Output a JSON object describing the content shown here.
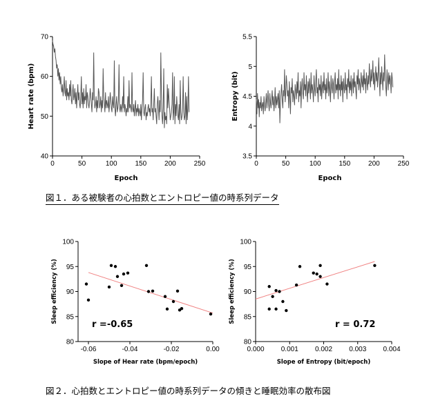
{
  "captions": {
    "fig1": "図１．ある被験者の心拍数とエントロピー値の時系列データ",
    "fig2": "図２．心拍数とエントロピー値の時系列データの傾きと睡眠効率の散布図"
  },
  "colors": {
    "line": "#555555",
    "fit": "#f08080",
    "point": "#000000",
    "axis": "#000000"
  },
  "chart_data": [
    {
      "type": "line",
      "xlabel": "Epoch",
      "ylabel": "Heart rate (bpm)",
      "xlim": [
        0,
        250
      ],
      "ylim": [
        40,
        70
      ],
      "xticks": [
        0,
        50,
        100,
        150,
        200,
        250
      ],
      "yticks": [
        40,
        50,
        60,
        70
      ],
      "x_start": 0,
      "x_step": 1,
      "values": [
        69,
        68,
        67.5,
        66,
        67,
        65,
        64,
        62,
        63,
        60,
        62,
        59,
        61,
        58,
        60,
        57,
        56,
        58,
        55,
        57,
        60,
        56,
        55,
        59,
        54,
        57,
        55,
        56,
        54,
        58,
        55,
        59,
        54,
        53,
        56,
        58,
        54,
        55,
        57,
        53,
        56,
        52,
        55,
        58,
        54,
        56,
        53,
        52,
        55,
        60,
        53,
        56,
        52,
        57,
        53,
        55,
        54,
        58,
        52,
        56,
        55,
        53,
        52,
        54,
        57,
        55,
        53,
        51,
        56,
        54,
        66,
        54,
        52,
        53,
        55,
        51,
        54,
        52,
        57,
        56,
        52,
        53,
        55,
        51,
        54,
        52,
        62,
        55,
        53,
        51,
        56,
        52,
        54,
        53,
        52,
        55,
        51,
        53,
        56,
        54,
        52,
        51,
        55,
        53,
        52,
        64,
        52,
        50,
        53,
        55,
        51,
        52,
        54,
        63,
        52,
        51,
        53,
        52,
        51,
        55,
        52,
        60,
        51,
        53,
        52,
        50,
        52,
        51,
        55,
        51,
        59,
        52,
        53,
        52,
        51,
        61,
        52,
        51,
        53,
        50,
        52,
        54,
        50,
        52,
        51,
        53,
        50,
        52,
        51,
        50,
        53,
        49,
        52,
        54,
        61,
        51,
        50,
        52,
        53,
        49,
        51,
        50,
        52,
        53,
        51,
        52,
        50,
        53,
        60,
        51,
        52,
        49,
        53,
        57,
        51,
        52,
        50,
        48,
        53,
        55,
        52,
        49,
        54,
        51,
        66,
        56,
        50,
        48,
        52,
        62,
        47,
        51,
        49,
        50,
        48,
        58,
        52,
        57,
        54,
        52,
        49,
        50,
        51,
        53,
        61,
        49,
        51,
        60,
        48,
        53,
        50,
        55,
        52,
        50,
        49,
        53,
        48,
        59,
        51,
        49,
        50,
        52,
        60,
        51,
        49,
        50,
        56,
        48,
        55,
        49,
        52,
        60,
        51
      ]
    },
    {
      "type": "line",
      "xlabel": "Epoch",
      "ylabel": "Entropy (bit)",
      "xlim": [
        0,
        250
      ],
      "ylim": [
        3.5,
        5.5
      ],
      "xticks": [
        0,
        50,
        100,
        150,
        200,
        250
      ],
      "yticks": [
        3.5,
        4.0,
        4.5,
        5.0,
        5.5
      ],
      "x_start": 0,
      "x_step": 1,
      "values": [
        4.45,
        4.2,
        4.55,
        4.3,
        4.45,
        4.15,
        4.4,
        4.3,
        4.5,
        4.25,
        4.35,
        4.4,
        4.2,
        4.5,
        4.35,
        4.25,
        4.4,
        4.55,
        4.3,
        4.45,
        4.6,
        4.35,
        4.25,
        4.55,
        4.4,
        4.3,
        4.45,
        4.6,
        4.35,
        4.5,
        4.25,
        4.4,
        4.65,
        4.3,
        4.5,
        4.35,
        4.45,
        4.55,
        4.3,
        4.6,
        4.05,
        4.4,
        4.55,
        4.7,
        4.45,
        4.3,
        4.6,
        4.5,
        4.95,
        4.4,
        4.55,
        4.85,
        4.7,
        4.5,
        4.6,
        4.3,
        4.75,
        4.5,
        4.2,
        4.65,
        4.55,
        4.8,
        4.4,
        4.6,
        4.5,
        4.35,
        4.7,
        4.6,
        4.45,
        4.75,
        4.55,
        4.9,
        4.4,
        4.6,
        4.5,
        4.75,
        4.3,
        4.65,
        4.8,
        4.55,
        4.45,
        4.9,
        4.6,
        4.7,
        4.5,
        4.85,
        4.6,
        4.4,
        4.75,
        4.55,
        4.8,
        4.65,
        4.45,
        4.9,
        4.55,
        4.7,
        4.6,
        4.4,
        4.85,
        4.65,
        4.5,
        4.75,
        4.95,
        4.55,
        4.65,
        4.4,
        4.8,
        4.6,
        4.7,
        4.5,
        4.85,
        4.45,
        4.65,
        4.75,
        4.55,
        4.9,
        4.6,
        4.7,
        4.45,
        4.8,
        4.55,
        4.65,
        4.9,
        4.5,
        4.75,
        4.6,
        4.4,
        4.85,
        4.65,
        4.55,
        4.8,
        4.7,
        4.45,
        4.75,
        4.9,
        4.55,
        4.7,
        4.6,
        4.8,
        4.45,
        4.95,
        4.6,
        4.7,
        4.5,
        4.85,
        4.6,
        4.75,
        4.4,
        4.8,
        4.65,
        4.55,
        4.9,
        4.6,
        4.7,
        4.45,
        4.8,
        4.65,
        4.95,
        4.55,
        4.75,
        4.6,
        4.85,
        4.5,
        4.7,
        4.8,
        4.55,
        4.9,
        4.65,
        4.75,
        4.6,
        4.45,
        4.85,
        4.7,
        4.95,
        4.6,
        4.8,
        4.7,
        4.55,
        4.9,
        4.75,
        4.65,
        4.85,
        4.6,
        4.95,
        4.7,
        4.8,
        4.55,
        4.9,
        4.75,
        4.6,
        4.85,
        4.7,
        5.05,
        4.8,
        4.65,
        4.95,
        4.75,
        4.85,
        5.1,
        4.7,
        4.9,
        4.6,
        4.8,
        5.0,
        4.75,
        4.9,
        4.65,
        4.85,
        5.15,
        4.8,
        4.5,
        4.9,
        4.7,
        5.0,
        4.8,
        4.6,
        4.9,
        4.75,
        5.2,
        4.85,
        4.65,
        4.5,
        4.95,
        4.8,
        4.6,
        4.9,
        4.7,
        4.85,
        4.75,
        4.55,
        4.9,
        4.8,
        4.65
      ]
    },
    {
      "type": "scatter",
      "xlabel": "Slope of Hear rate (bpm/epoch)",
      "ylabel": "Sleep efficiency (%)",
      "xlim": [
        -0.065,
        0.0
      ],
      "ylim": [
        80,
        100
      ],
      "xticks": [
        -0.06,
        -0.04,
        -0.02,
        0.0
      ],
      "xticklabels": [
        "-0.06",
        "-0.04",
        "-0.02",
        "0.00"
      ],
      "yticks": [
        80,
        85,
        90,
        95,
        100
      ],
      "annotation": "r =-0.65",
      "fit": {
        "x": [
          -0.06,
          0.0
        ],
        "y": [
          93.8,
          85.7
        ]
      },
      "points": [
        [
          -0.061,
          91.5
        ],
        [
          -0.06,
          88.3
        ],
        [
          -0.05,
          90.9
        ],
        [
          -0.049,
          95.2
        ],
        [
          -0.047,
          95.0
        ],
        [
          -0.046,
          93.0
        ],
        [
          -0.044,
          91.2
        ],
        [
          -0.043,
          93.5
        ],
        [
          -0.041,
          93.7
        ],
        [
          -0.032,
          95.2
        ],
        [
          -0.031,
          90.0
        ],
        [
          -0.029,
          90.1
        ],
        [
          -0.023,
          89.0
        ],
        [
          -0.022,
          86.5
        ],
        [
          -0.019,
          88.0
        ],
        [
          -0.017,
          90.1
        ],
        [
          -0.016,
          86.3
        ],
        [
          -0.015,
          86.6
        ],
        [
          -0.001,
          85.5
        ]
      ]
    },
    {
      "type": "scatter",
      "xlabel": "Slope of Entropy (bit/epoch)",
      "ylabel": "Sleep efficiency (%)",
      "xlim": [
        0.0,
        0.004
      ],
      "ylim": [
        80,
        100
      ],
      "xticks": [
        0.0,
        0.001,
        0.002,
        0.003,
        0.004
      ],
      "xticklabels": [
        "0.000",
        "0.001",
        "0.002",
        "0.003",
        "0.004"
      ],
      "yticks": [
        80,
        85,
        90,
        95,
        100
      ],
      "annotation": "r = 0.72",
      "fit": {
        "x": [
          0.0,
          0.0035
        ],
        "y": [
          88.5,
          96.0
        ]
      },
      "points": [
        [
          0.0004,
          86.5
        ],
        [
          0.0004,
          91.0
        ],
        [
          0.0005,
          89.0
        ],
        [
          0.0006,
          90.2
        ],
        [
          0.0006,
          86.5
        ],
        [
          0.0007,
          90.0
        ],
        [
          0.0008,
          88.0
        ],
        [
          0.0009,
          86.2
        ],
        [
          0.0012,
          91.3
        ],
        [
          0.0013,
          95.0
        ],
        [
          0.0017,
          93.7
        ],
        [
          0.0018,
          93.5
        ],
        [
          0.0019,
          95.2
        ],
        [
          0.0019,
          93.0
        ],
        [
          0.0021,
          91.5
        ],
        [
          0.0035,
          95.2
        ]
      ]
    }
  ]
}
